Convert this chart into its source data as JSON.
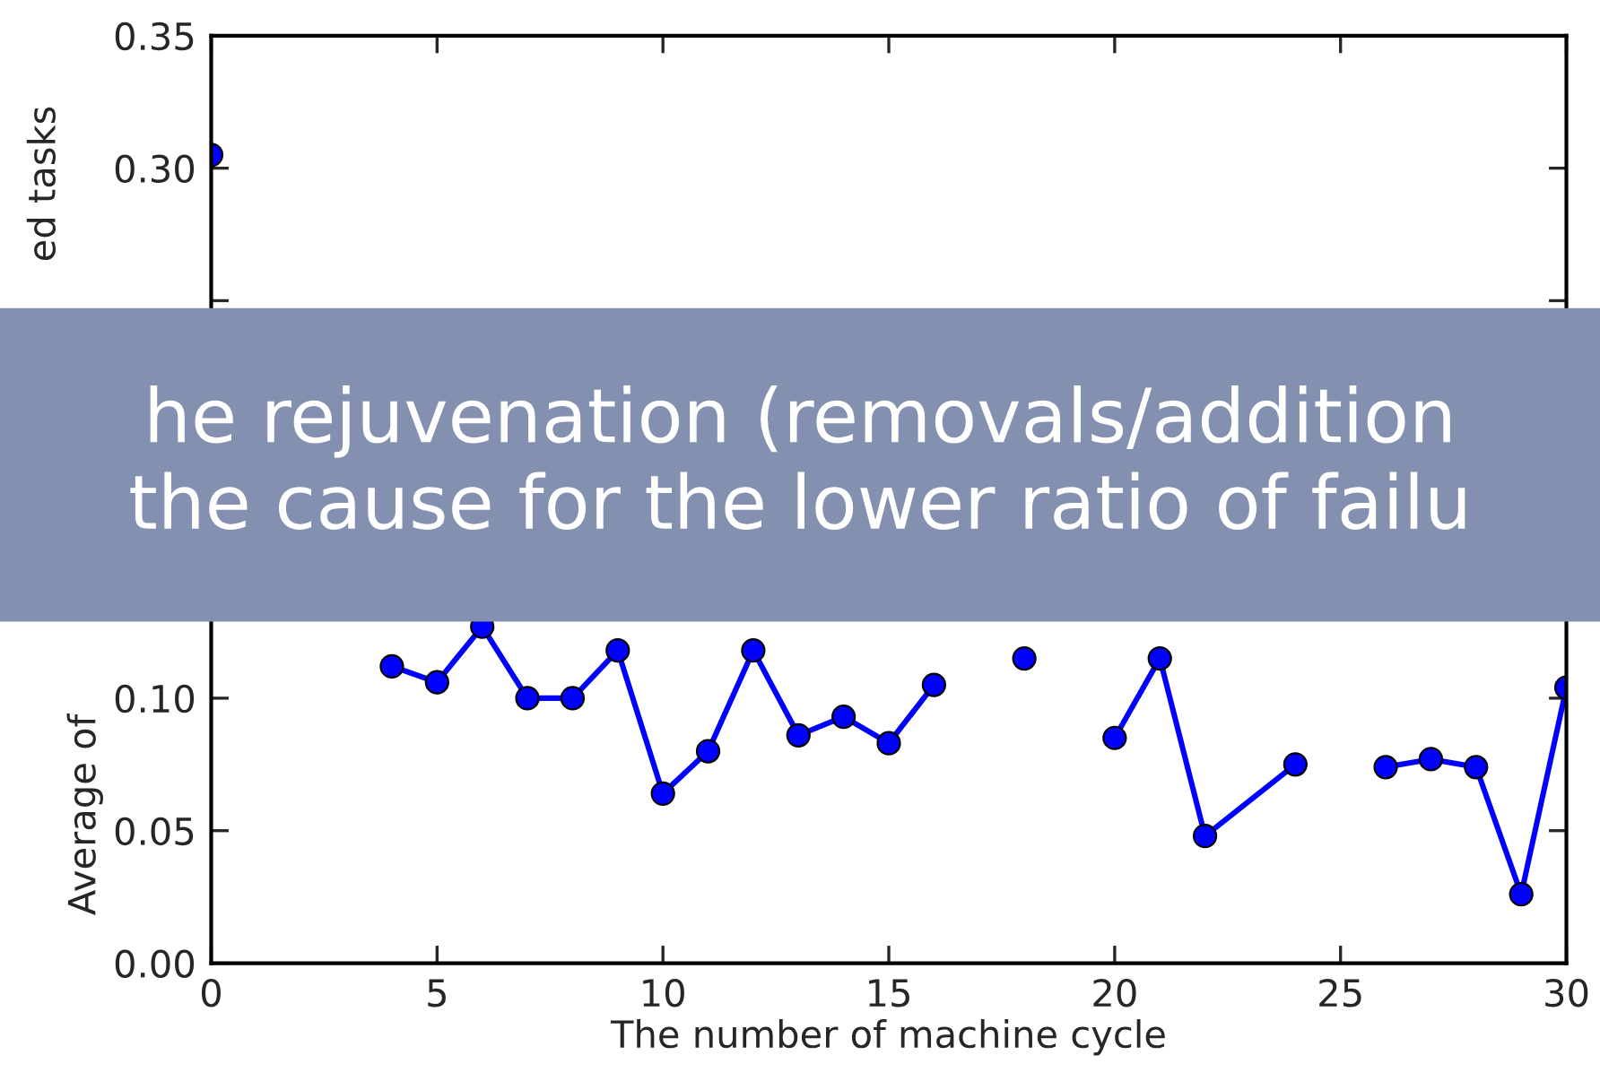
{
  "chart_data": {
    "type": "line",
    "xlabel": "The number of machine cycle",
    "ylabel": "Average of",
    "annotations": [
      "he rejuvenation (removals/addition\nthe cause for the lower ratio of failu",
      "ed tasks"
    ],
    "x": [
      0,
      1,
      2,
      3,
      4,
      5,
      6,
      7,
      8,
      9,
      10,
      11,
      12,
      13,
      14,
      15,
      16,
      17,
      18,
      19,
      20,
      21,
      22,
      24,
      25,
      26,
      27,
      28,
      29,
      30
    ],
    "series": [
      {
        "color": "#0000ff",
        "values": [
          0.305,
          null,
          null,
          null,
          0.112,
          0.106,
          0.127,
          0.1,
          0.1,
          0.118,
          0.064,
          0.08,
          0.118,
          0.086,
          0.093,
          0.083,
          0.105,
          null,
          0.115,
          null,
          0.085,
          0.115,
          0.048,
          0.075,
          null,
          0.074,
          0.077,
          0.074,
          0.026,
          0.104
        ]
      }
    ],
    "marker": "circle",
    "line_style": "solid",
    "xlim": [
      0,
      30
    ],
    "xticks": [
      0,
      5,
      10,
      15,
      20,
      25,
      30
    ],
    "ylim": [
      0,
      0.35
    ],
    "yticks": [
      {
        "value": 0,
        "label": "0.00"
      },
      {
        "value": 0.05,
        "label": "0.05"
      },
      {
        "value": 0.1,
        "label": "0.10"
      },
      {
        "value": 0.15,
        "label": null
      },
      {
        "value": 0.2,
        "label": null
      },
      {
        "value": 0.25,
        "label": null
      },
      {
        "value": 0.3,
        "label": "0.30"
      },
      {
        "value": 0.35,
        "label": "0.35"
      }
    ],
    "grid": false,
    "legend": false
  }
}
